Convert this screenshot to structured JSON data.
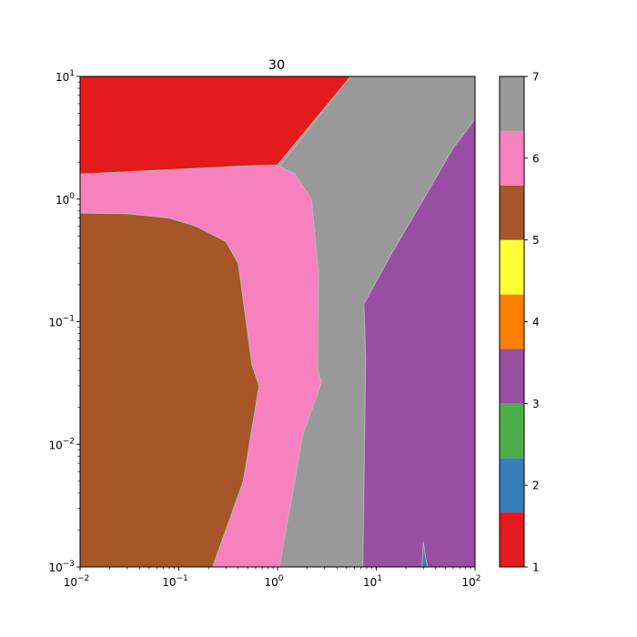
{
  "chart_data": {
    "type": "heatmap",
    "subtype": "filled-contour",
    "title": "30",
    "xlabel": "",
    "ylabel": "",
    "xscale": "log",
    "yscale": "log",
    "xlim": [
      0.01,
      100
    ],
    "ylim": [
      0.001,
      10
    ],
    "x_ticks": [
      {
        "value": 0.01,
        "base": "10",
        "exp": "−2"
      },
      {
        "value": 0.1,
        "base": "10",
        "exp": "−1"
      },
      {
        "value": 1,
        "base": "10",
        "exp": "0"
      },
      {
        "value": 10,
        "base": "10",
        "exp": "1"
      },
      {
        "value": 100,
        "base": "10",
        "exp": "2"
      }
    ],
    "y_ticks": [
      {
        "value": 0.001,
        "base": "10",
        "exp": "−3"
      },
      {
        "value": 0.01,
        "base": "10",
        "exp": "−2"
      },
      {
        "value": 0.1,
        "base": "10",
        "exp": "−1"
      },
      {
        "value": 1,
        "base": "10",
        "exp": "0"
      },
      {
        "value": 10,
        "base": "10",
        "exp": "1"
      }
    ],
    "colormap": "Set1",
    "colorbar": {
      "range": [
        1,
        7
      ],
      "ticks": [
        "1",
        "2",
        "3",
        "4",
        "5",
        "6",
        "7"
      ],
      "bands": [
        {
          "from": 1.0,
          "to": 1.667,
          "color": "#e41a1c"
        },
        {
          "from": 1.667,
          "to": 2.333,
          "color": "#377eb8"
        },
        {
          "from": 2.333,
          "to": 3.0,
          "color": "#4daf4a"
        },
        {
          "from": 3.0,
          "to": 3.667,
          "color": "#984ea3"
        },
        {
          "from": 3.667,
          "to": 4.333,
          "color": "#ff7f00"
        },
        {
          "from": 4.333,
          "to": 5.0,
          "color": "#ffff33"
        },
        {
          "from": 5.0,
          "to": 5.667,
          "color": "#a65628"
        },
        {
          "from": 5.667,
          "to": 6.333,
          "color": "#f781bf"
        },
        {
          "from": 6.333,
          "to": 7.0,
          "color": "#999999"
        }
      ]
    },
    "regions": [
      {
        "level": 5.5,
        "color": "#a65628",
        "boundary": [
          [
            0.01,
            0.77
          ],
          [
            0.03,
            0.76
          ],
          [
            0.08,
            0.7
          ],
          [
            0.15,
            0.6
          ],
          [
            0.3,
            0.45
          ],
          [
            0.4,
            0.3
          ],
          [
            0.45,
            0.15
          ],
          [
            0.55,
            0.045
          ],
          [
            0.65,
            0.03
          ],
          [
            0.45,
            0.005
          ],
          [
            0.22,
            0.001
          ],
          [
            0.01,
            0.001
          ]
        ]
      },
      {
        "level": 6,
        "color": "#f781bf",
        "boundary": [
          [
            0.01,
            1.6
          ],
          [
            0.1,
            1.75
          ],
          [
            0.4,
            1.85
          ],
          [
            0.8,
            1.9
          ],
          [
            1.05,
            1.85
          ],
          [
            1.5,
            1.6
          ],
          [
            2.2,
            1.0
          ],
          [
            2.6,
            0.25
          ],
          [
            2.55,
            0.04
          ],
          [
            2.8,
            0.032
          ],
          [
            1.8,
            0.012
          ],
          [
            1.05,
            0.001
          ],
          [
            0.22,
            0.001
          ],
          [
            0.45,
            0.005
          ],
          [
            0.65,
            0.03
          ],
          [
            0.55,
            0.045
          ],
          [
            0.45,
            0.15
          ],
          [
            0.4,
            0.3
          ],
          [
            0.3,
            0.45
          ],
          [
            0.15,
            0.6
          ],
          [
            0.08,
            0.7
          ],
          [
            0.03,
            0.76
          ],
          [
            0.01,
            0.77
          ]
        ]
      },
      {
        "level": 1,
        "color": "#e41a1c",
        "boundary": [
          [
            0.01,
            10
          ],
          [
            5.5,
            10
          ],
          [
            1.0,
            1.9
          ],
          [
            0.4,
            1.85
          ],
          [
            0.1,
            1.75
          ],
          [
            0.01,
            1.6
          ]
        ]
      },
      {
        "level": 7,
        "color": "#999999",
        "boundary": [
          [
            5.5,
            10
          ],
          [
            100,
            10
          ],
          [
            100,
            4.5
          ],
          [
            60,
            2.6
          ],
          [
            30,
            1.0
          ],
          [
            14,
            0.35
          ],
          [
            7.5,
            0.14
          ],
          [
            7.8,
            0.05
          ],
          [
            7.3,
            0.001
          ],
          [
            1.05,
            0.001
          ],
          [
            1.8,
            0.012
          ],
          [
            2.8,
            0.032
          ],
          [
            2.55,
            0.04
          ],
          [
            2.6,
            0.25
          ],
          [
            2.2,
            1.0
          ],
          [
            1.5,
            1.6
          ],
          [
            1.05,
            1.85
          ]
        ]
      },
      {
        "level": 3,
        "color": "#984ea3",
        "boundary": [
          [
            100,
            4.5
          ],
          [
            100,
            0.001
          ],
          [
            7.3,
            0.001
          ],
          [
            7.8,
            0.05
          ],
          [
            7.5,
            0.14
          ],
          [
            14,
            0.35
          ],
          [
            30,
            1.0
          ],
          [
            60,
            2.6
          ]
        ]
      },
      {
        "level": 2,
        "color": "#377eb8",
        "boundary": [
          [
            29,
            0.001
          ],
          [
            30,
            0.0016
          ],
          [
            31.5,
            0.0012
          ],
          [
            33,
            0.001
          ]
        ]
      }
    ]
  }
}
